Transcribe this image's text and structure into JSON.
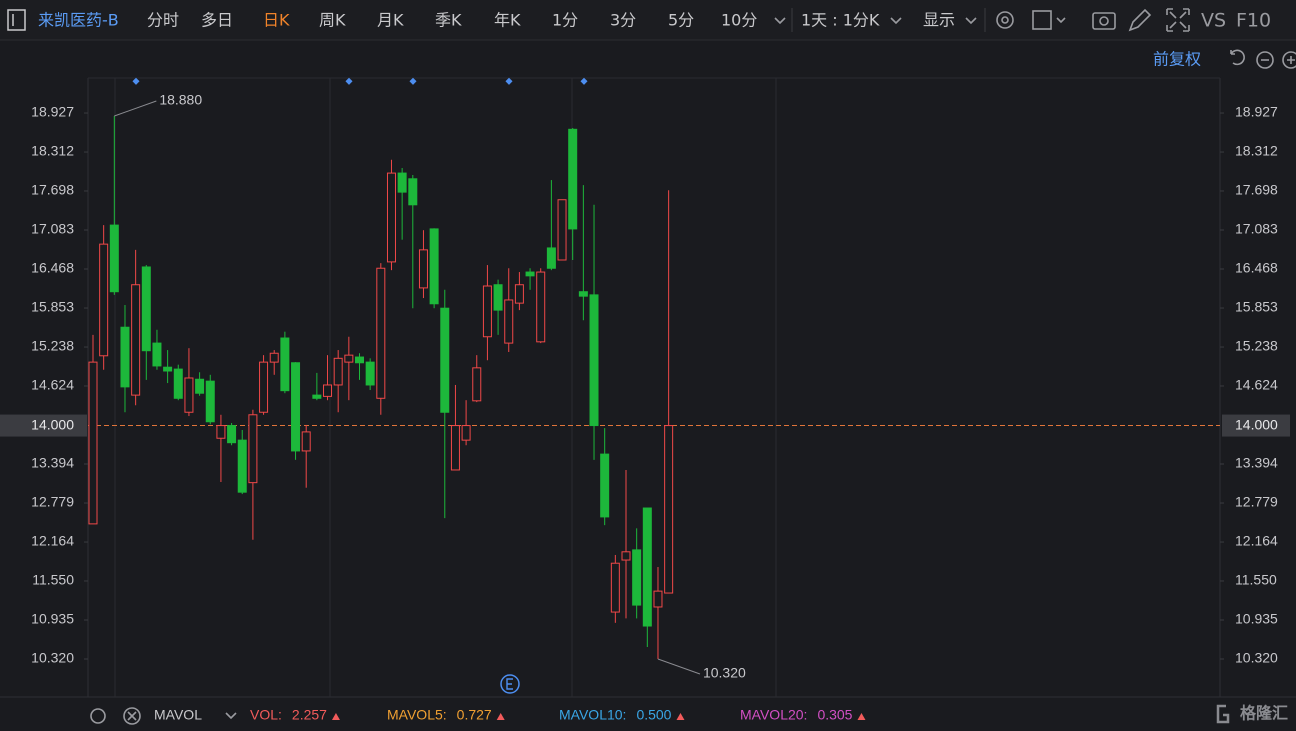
{
  "toolbar": {
    "stock": "来凯医药-B",
    "tabs": [
      "分时",
      "多日",
      "日K",
      "周K",
      "月K",
      "季K",
      "年K",
      "1分",
      "3分",
      "5分",
      "10分"
    ],
    "interval": "1天 : 1分K",
    "display": "显示",
    "vs": "VS",
    "f10": "F10",
    "adjust": "前复权"
  },
  "chart_data": {
    "type": "candlestick",
    "open": [
      12.45,
      15.1,
      17.16,
      15.55,
      14.48,
      16.5,
      15.3,
      14.92,
      14.89,
      14.21,
      14.73,
      14.7,
      13.8,
      14.0,
      13.77,
      13.1,
      14.21,
      15.0,
      15.38,
      14.99,
      13.6,
      14.48,
      14.46,
      14.64,
      15.0,
      15.08,
      15.0,
      14.43,
      16.58,
      17.98,
      17.89,
      16.17,
      17.1,
      15.85,
      13.3,
      13.77,
      14.39,
      15.4,
      16.22,
      15.3,
      15.93,
      16.42,
      15.32,
      16.8,
      16.61,
      18.67,
      16.11,
      16.06,
      13.55,
      11.06,
      11.88,
      12.04,
      12.7,
      11.14,
      11.36
    ],
    "high": [
      15.43,
      17.16,
      18.88,
      15.9,
      16.77,
      16.53,
      15.51,
      15.19,
      14.96,
      15.22,
      14.84,
      14.8,
      14.17,
      14.04,
      13.93,
      14.25,
      15.11,
      15.19,
      15.48,
      15.0,
      14.01,
      14.83,
      15.11,
      15.19,
      15.4,
      15.14,
      15.06,
      16.56,
      18.19,
      18.06,
      17.95,
      17.08,
      17.11,
      16.14,
      14.64,
      14.4,
      15.11,
      16.53,
      16.3,
      16.48,
      16.42,
      16.48,
      16.48,
      17.87,
      17.56,
      18.69,
      17.79,
      17.48,
      13.96,
      11.96,
      13.3,
      12.38,
      12.7,
      11.77,
      17.71
    ],
    "low": [
      12.45,
      14.88,
      16.06,
      14.21,
      14.32,
      14.72,
      14.88,
      14.67,
      14.4,
      14.15,
      14.47,
      14.02,
      13.11,
      13.69,
      12.92,
      12.2,
      14.17,
      14.8,
      14.51,
      13.46,
      13.02,
      14.4,
      14.4,
      14.21,
      14.4,
      14.72,
      14.56,
      14.17,
      16.45,
      16.93,
      15.85,
      16.01,
      15.85,
      12.54,
      13.3,
      13.69,
      14.37,
      15.03,
      15.43,
      15.16,
      15.82,
      16.14,
      15.3,
      16.45,
      16.61,
      16.61,
      15.66,
      13.46,
      12.43,
      10.89,
      10.96,
      10.96,
      10.51,
      10.32,
      11.36
    ],
    "close": [
      15.0,
      16.86,
      16.11,
      14.61,
      16.22,
      15.18,
      14.94,
      14.86,
      14.43,
      14.75,
      14.51,
      14.06,
      14.0,
      13.73,
      12.95,
      14.17,
      15.0,
      15.14,
      14.55,
      13.6,
      13.9,
      14.43,
      14.64,
      15.06,
      15.11,
      14.99,
      14.64,
      16.48,
      17.98,
      17.68,
      17.48,
      16.77,
      15.92,
      14.21,
      14.0,
      14.0,
      14.91,
      16.2,
      15.82,
      15.98,
      16.22,
      16.36,
      16.42,
      16.48,
      17.56,
      17.1,
      16.04,
      14.0,
      12.56,
      11.83,
      12.01,
      11.17,
      10.84,
      11.39,
      14.0
    ],
    "up_color": "#f04848",
    "down_color": "#1db83b",
    "ylim": [
      9.721,
      19.479
    ],
    "yticks": [
      18.927,
      18.312,
      17.698,
      17.083,
      16.468,
      15.853,
      15.238,
      14.624,
      13.394,
      12.779,
      12.164,
      {
        "value": 11.55,
        "label": "11.550"
      },
      10.935,
      {
        "value": 10.32,
        "label": "10.320"
      }
    ],
    "price_line": {
      "value": 14,
      "label": "14.000",
      "color": "#e0743a"
    },
    "annotations": [
      {
        "value": 18.88,
        "label": "18.880"
      },
      {
        "value": 10.32,
        "label": "10.320"
      }
    ]
  },
  "indicator": {
    "name": "MAVOL",
    "items": [
      {
        "name": "VOL:",
        "value": "2.257",
        "color": "#f25b5b"
      },
      {
        "name": "MAVOL5:",
        "value": "0.727",
        "color": "#f0a032"
      },
      {
        "name": "MAVOL10:",
        "value": "0.500",
        "color": "#3aa6e6"
      },
      {
        "name": "MAVOL20:",
        "value": "0.305",
        "color": "#d24fc4"
      }
    ]
  },
  "watermark": "格隆汇"
}
